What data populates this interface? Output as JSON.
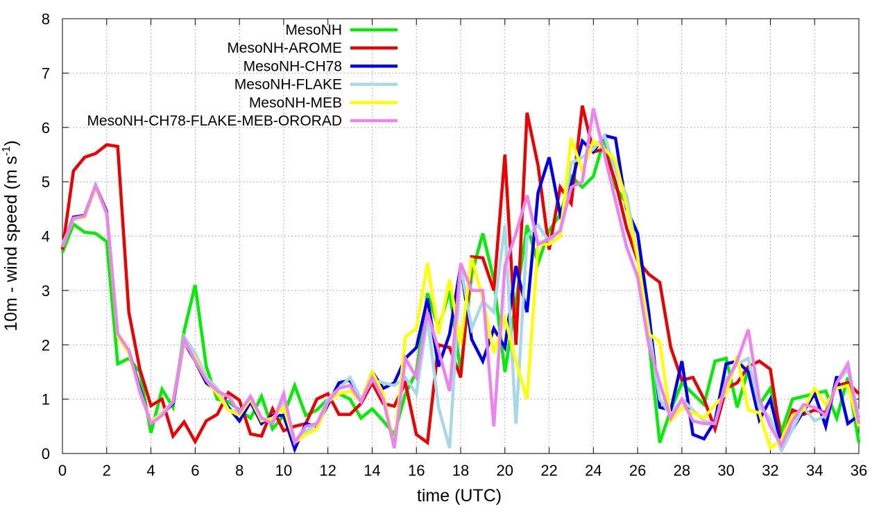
{
  "chart_data": {
    "type": "line",
    "title": "",
    "xlabel": "time (UTC)",
    "ylabel_main": "10m - wind speed  (m s",
    "ylabel_sup": "-1",
    "ylabel_close": ")",
    "xlim": [
      0,
      36
    ],
    "ylim": [
      0,
      8
    ],
    "x_ticks": [
      "0",
      "2",
      "4",
      "6",
      "8",
      "10",
      "12",
      "14",
      "16",
      "18",
      "20",
      "22",
      "24",
      "26",
      "28",
      "30",
      "32",
      "34",
      "36"
    ],
    "y_ticks": [
      "0",
      "1",
      "2",
      "3",
      "4",
      "5",
      "6",
      "7",
      "8"
    ],
    "grid": true,
    "legend_position": "top-left",
    "series": [
      {
        "name": "MesoNH",
        "color": "#00ee00",
        "x": [
          0,
          0.5,
          1,
          1.5,
          2,
          2.5,
          3,
          3.5,
          4,
          4.5,
          5,
          5.5,
          6,
          6.5,
          7,
          7.5,
          8,
          8.5,
          9,
          9.5,
          10,
          10.5,
          11,
          11.5,
          12,
          12.5,
          13,
          13.5,
          14,
          14.5,
          15,
          15.5,
          16,
          16.5,
          17,
          17.5,
          18,
          18.5,
          19,
          19.5,
          20,
          20.5,
          21,
          21.5,
          22,
          22.5,
          23,
          23.5,
          24,
          24.5,
          25,
          25.5,
          26,
          26.5,
          27,
          27.5,
          28,
          28.5,
          29,
          29.5,
          30,
          30.5,
          31,
          31.5,
          32,
          32.5,
          33,
          33.5,
          34,
          34.5,
          35,
          35.5,
          36
        ],
        "values": [
          3.7,
          4.22,
          4.07,
          4.05,
          3.9,
          1.65,
          1.75,
          1.5,
          0.38,
          1.18,
          0.85,
          2.25,
          3.1,
          1.6,
          1.0,
          0.95,
          0.8,
          0.65,
          1.05,
          0.45,
          0.7,
          1.25,
          0.7,
          0.8,
          1.0,
          1.1,
          1.0,
          0.65,
          0.82,
          0.6,
          0.35,
          1.1,
          1.5,
          2.95,
          2.3,
          3.0,
          1.5,
          3.3,
          4.05,
          3.2,
          1.5,
          2.8,
          4.2,
          3.5,
          4.1,
          4.4,
          5.1,
          4.9,
          5.1,
          5.8,
          4.9,
          4.6,
          3.6,
          2.1,
          0.2,
          0.8,
          1.3,
          1.1,
          0.9,
          1.7,
          1.75,
          0.85,
          1.55,
          0.9,
          1.2,
          0.4,
          1.0,
          1.05,
          1.1,
          1.15,
          0.65,
          1.4,
          0.2
        ]
      },
      {
        "name": "MesoNH-AROME",
        "color": "#ee0000",
        "x": [
          0,
          0.5,
          1,
          1.5,
          2,
          2.5,
          3,
          3.5,
          4,
          4.5,
          5,
          5.5,
          6,
          6.5,
          7,
          7.5,
          8,
          8.5,
          9,
          9.5,
          10,
          10.5,
          11,
          11.5,
          12,
          12.5,
          13,
          13.5,
          14,
          14.5,
          15,
          15.5,
          16,
          16.5,
          17,
          17.5,
          18,
          18.5,
          19,
          19.5,
          20,
          20.5,
          21,
          21.5,
          22,
          22.5,
          23,
          23.5,
          24,
          24.5,
          25,
          25.5,
          26,
          26.5,
          27,
          27.5,
          28,
          28.5,
          29,
          29.5,
          30,
          30.5,
          31,
          31.5,
          32,
          32.5,
          33,
          33.5,
          34,
          34.5,
          35,
          35.5,
          36
        ],
        "values": [
          3.75,
          5.2,
          5.45,
          5.52,
          5.68,
          5.65,
          2.6,
          1.55,
          0.88,
          1.0,
          0.32,
          0.58,
          0.22,
          0.6,
          0.72,
          1.12,
          0.98,
          0.36,
          0.32,
          0.82,
          0.42,
          0.5,
          0.55,
          1.0,
          1.1,
          0.72,
          0.72,
          0.92,
          1.3,
          0.92,
          0.87,
          1.3,
          0.35,
          0.2,
          2.0,
          1.95,
          1.4,
          3.62,
          3.6,
          3.0,
          5.5,
          2.0,
          6.27,
          5.3,
          3.75,
          4.9,
          4.6,
          6.4,
          5.55,
          5.6,
          5.0,
          4.15,
          3.55,
          3.3,
          3.15,
          1.95,
          1.35,
          1.4,
          1.0,
          0.45,
          1.2,
          1.3,
          1.6,
          1.7,
          1.55,
          0.2,
          0.8,
          0.72,
          0.8,
          0.75,
          1.25,
          1.3,
          1.1
        ]
      },
      {
        "name": "MesoNH-CH78",
        "color": "#0000ee",
        "x": [
          0,
          0.5,
          1,
          1.5,
          2,
          2.5,
          3,
          3.5,
          4,
          4.5,
          5,
          5.5,
          6,
          6.5,
          7,
          7.5,
          8,
          8.5,
          9,
          9.5,
          10,
          10.5,
          11,
          11.5,
          12,
          12.5,
          13,
          13.5,
          14,
          14.5,
          15,
          15.5,
          16,
          16.5,
          17,
          17.5,
          18,
          18.5,
          19,
          19.5,
          20,
          20.5,
          21,
          21.5,
          22,
          22.5,
          23,
          23.5,
          24,
          24.5,
          25,
          25.5,
          26,
          26.5,
          27,
          27.5,
          28,
          28.5,
          29,
          29.5,
          30,
          30.5,
          31,
          31.5,
          32,
          32.5,
          33,
          33.5,
          34,
          34.5,
          35,
          35.5,
          36
        ],
        "values": [
          3.8,
          4.35,
          4.38,
          4.93,
          4.45,
          2.15,
          1.9,
          1.2,
          0.55,
          0.72,
          0.92,
          2.05,
          1.7,
          1.3,
          1.15,
          0.85,
          0.6,
          0.95,
          0.55,
          0.7,
          0.7,
          0.08,
          0.55,
          0.5,
          0.9,
          1.3,
          1.35,
          0.95,
          1.5,
          1.2,
          1.3,
          1.75,
          1.95,
          2.85,
          1.6,
          2.2,
          3.45,
          2.1,
          1.7,
          2.3,
          1.95,
          3.45,
          2.6,
          4.8,
          5.45,
          4.4,
          4.95,
          5.75,
          5.55,
          5.85,
          5.8,
          4.5,
          4.05,
          2.6,
          0.85,
          0.8,
          1.7,
          0.35,
          0.27,
          0.6,
          1.65,
          1.7,
          1.5,
          0.62,
          1.0,
          0.15,
          0.45,
          0.78,
          1.1,
          0.5,
          1.42,
          0.55,
          0.7
        ]
      },
      {
        "name": "MesoNH-FLAKE",
        "color": "#a8d8e8",
        "x": [
          0,
          0.5,
          1,
          1.5,
          2,
          2.5,
          3,
          3.5,
          4,
          4.5,
          5,
          5.5,
          6,
          6.5,
          7,
          7.5,
          8,
          8.5,
          9,
          9.5,
          10,
          10.5,
          11,
          11.5,
          12,
          12.5,
          13,
          13.5,
          14,
          14.5,
          15,
          15.5,
          16,
          16.5,
          17,
          17.5,
          18,
          18.5,
          19,
          19.5,
          20,
          20.5,
          21,
          21.5,
          22,
          22.5,
          23,
          23.5,
          24,
          24.5,
          25,
          25.5,
          26,
          26.5,
          27,
          27.5,
          28,
          28.5,
          29,
          29.5,
          30,
          30.5,
          31,
          31.5,
          32,
          32.5,
          33,
          33.5,
          34,
          34.5,
          35,
          35.5,
          36
        ],
        "values": [
          3.85,
          4.3,
          4.35,
          4.92,
          4.4,
          2.2,
          1.9,
          1.1,
          0.6,
          0.75,
          0.95,
          2.15,
          1.85,
          1.4,
          1.2,
          0.8,
          0.75,
          1.0,
          0.65,
          0.6,
          0.95,
          0.25,
          0.4,
          0.55,
          1.0,
          1.2,
          1.4,
          1.0,
          1.35,
          1.3,
          1.25,
          1.4,
          1.1,
          2.5,
          0.85,
          0.1,
          3.45,
          2.3,
          2.8,
          2.6,
          4.2,
          0.55,
          4.0,
          4.2,
          3.9,
          4.1,
          5.35,
          5.45,
          5.6,
          5.85,
          5.2,
          4.75,
          3.6,
          2.3,
          1.0,
          0.7,
          1.0,
          0.8,
          0.6,
          0.55,
          1.35,
          1.65,
          1.75,
          0.85,
          0.65,
          0.05,
          0.45,
          0.85,
          0.6,
          0.7,
          1.3,
          1.55,
          0.7
        ]
      },
      {
        "name": "MesoNH-MEB",
        "color": "#ffff00",
        "x": [
          0,
          0.5,
          1,
          1.5,
          2,
          2.5,
          3,
          3.5,
          4,
          4.5,
          5,
          5.5,
          6,
          6.5,
          7,
          7.5,
          8,
          8.5,
          9,
          9.5,
          10,
          10.5,
          11,
          11.5,
          12,
          12.5,
          13,
          13.5,
          14,
          14.5,
          15,
          15.5,
          16,
          16.5,
          17,
          17.5,
          18,
          18.5,
          19,
          19.5,
          20,
          20.5,
          21,
          21.5,
          22,
          22.5,
          23,
          23.5,
          24,
          24.5,
          25,
          25.5,
          26,
          26.5,
          27,
          27.5,
          28,
          28.5,
          29,
          29.5,
          30,
          30.5,
          31,
          31.5,
          32,
          32.5,
          33,
          33.5,
          34,
          34.5,
          35,
          35.5,
          36
        ],
        "values": [
          3.8,
          4.32,
          4.35,
          4.9,
          4.42,
          2.15,
          1.85,
          1.15,
          0.58,
          0.72,
          0.95,
          2.05,
          1.75,
          1.35,
          1.1,
          0.8,
          0.7,
          1.0,
          0.6,
          0.65,
          0.85,
          0.2,
          0.35,
          0.45,
          0.95,
          1.1,
          1.15,
          0.95,
          1.5,
          1.1,
          0.1,
          2.15,
          2.3,
          3.5,
          2.2,
          3.2,
          2.0,
          3.6,
          2.85,
          1.85,
          2.5,
          1.7,
          1.0,
          3.85,
          3.85,
          4.0,
          5.8,
          5.2,
          5.75,
          5.6,
          5.4,
          4.55,
          3.6,
          2.2,
          2.05,
          0.6,
          0.85,
          0.75,
          0.65,
          0.9,
          1.1,
          1.8,
          0.8,
          0.75,
          0.1,
          0.25,
          0.7,
          0.8,
          1.2,
          0.9,
          1.2,
          1.25,
          0.5
        ]
      },
      {
        "name": "MesoNH-CH78-FLAKE-MEB-ORORAD",
        "color": "#ee82ee",
        "x": [
          0,
          0.5,
          1,
          1.5,
          2,
          2.5,
          3,
          3.5,
          4,
          4.5,
          5,
          5.5,
          6,
          6.5,
          7,
          7.5,
          8,
          8.5,
          9,
          9.5,
          10,
          10.5,
          11,
          11.5,
          12,
          12.5,
          13,
          13.5,
          14,
          14.5,
          15,
          15.5,
          16,
          16.5,
          17,
          17.5,
          18,
          18.5,
          19,
          19.5,
          20,
          20.5,
          21,
          21.5,
          22,
          22.5,
          23,
          23.5,
          24,
          24.5,
          25,
          25.5,
          26,
          26.5,
          27,
          27.5,
          28,
          28.5,
          29,
          29.5,
          30,
          30.5,
          31,
          31.5,
          32,
          32.5,
          33,
          33.5,
          34,
          34.5,
          35,
          35.5,
          36
        ],
        "values": [
          3.8,
          4.33,
          4.37,
          4.93,
          4.42,
          2.2,
          1.9,
          1.15,
          0.55,
          0.7,
          0.95,
          2.1,
          1.7,
          1.35,
          1.15,
          1.05,
          0.75,
          1.05,
          0.65,
          0.55,
          1.1,
          0.2,
          0.5,
          0.55,
          0.95,
          1.2,
          1.25,
          0.95,
          1.4,
          1.0,
          0.1,
          1.75,
          1.4,
          2.6,
          1.9,
          1.15,
          3.5,
          3.0,
          3.0,
          0.5,
          3.45,
          4.05,
          4.75,
          3.85,
          3.95,
          4.1,
          4.9,
          5.0,
          6.35,
          5.5,
          4.65,
          3.8,
          3.25,
          2.0,
          1.3,
          0.65,
          1.0,
          0.6,
          0.55,
          0.55,
          1.3,
          1.7,
          2.28,
          1.0,
          0.5,
          0.15,
          0.6,
          0.9,
          0.85,
          0.7,
          1.3,
          1.65,
          0.55
        ]
      }
    ]
  }
}
